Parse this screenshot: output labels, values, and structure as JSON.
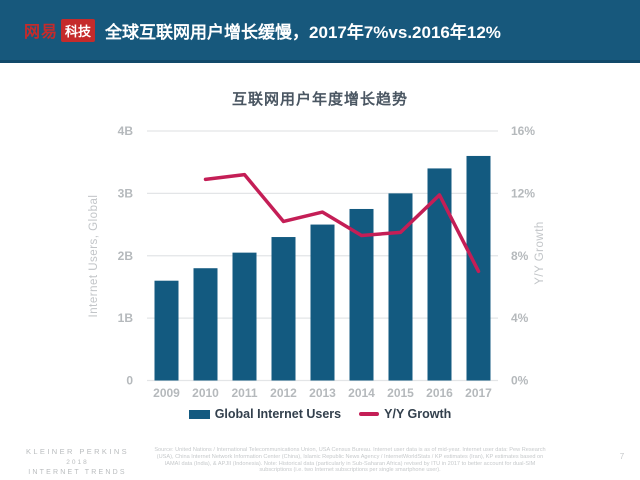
{
  "header": {
    "logo_brand": "网易",
    "logo_sub": "科技",
    "title": "全球互联网用户增长缓慢，2017年7%vs.2016年12%"
  },
  "chart_data": {
    "type": "bar+line combo",
    "title": "互联网用户年度增长趋势",
    "categories": [
      "2009",
      "2010",
      "2011",
      "2012",
      "2013",
      "2014",
      "2015",
      "2016",
      "2017"
    ],
    "series": [
      {
        "name": "Global Internet Users",
        "type": "bar",
        "axis": "left",
        "unit": "B",
        "color": "#135A80",
        "values": [
          1.6,
          1.8,
          2.05,
          2.3,
          2.5,
          2.75,
          3.0,
          3.4,
          3.6
        ]
      },
      {
        "name": "Y/Y Growth",
        "type": "line",
        "axis": "right",
        "unit": "%",
        "color": "#C41E56",
        "values": [
          null,
          12.9,
          13.2,
          10.2,
          10.8,
          9.3,
          9.5,
          11.9,
          7.0
        ]
      }
    ],
    "left_axis": {
      "label": "Internet Users, Global",
      "min": 0,
      "max": 4,
      "ticks": [
        "0",
        "1B",
        "2B",
        "3B",
        "4B"
      ]
    },
    "right_axis": {
      "label": "Y/Y Growth",
      "min": 0,
      "max": 16,
      "ticks": [
        "0%",
        "4%",
        "8%",
        "12%",
        "16%"
      ]
    },
    "grid": "horizontal only",
    "legend_position": "bottom center"
  },
  "footer": {
    "brand_line1": "KLEINER PERKINS",
    "brand_line2": "2018",
    "brand_line3": "INTERNET TRENDS",
    "source": "Source: United Nations / International Telecommunications Union, USA Census Bureau. Internet user data is as of mid-year. Internet user data: Pew Research (USA), China Internet Network Information Center (China), Islamic Republic News Agency / InternetWorldStats / KP estimates (Iran), KP estimates based on IAMAI data (India), & APJII (Indonesia). Note: Historical data (particularly in Sub-Saharan Africa) revised by ITU in 2017 to better account for dual-SIM subscriptions (i.e. two Internet subscriptions per single smartphone user).",
    "page_number": "7"
  },
  "colors": {
    "header_bg": "#17587C",
    "bar": "#135A80",
    "line": "#C41E56",
    "grid": "#E3E5E7",
    "tick_label": "#B5B9BC",
    "axis_title": "#C2C5C8",
    "chart_title": "#4A5662",
    "legend_text": "#33404D",
    "footer_text": "#B9BCBE",
    "logo_red": "#C52B2B"
  }
}
